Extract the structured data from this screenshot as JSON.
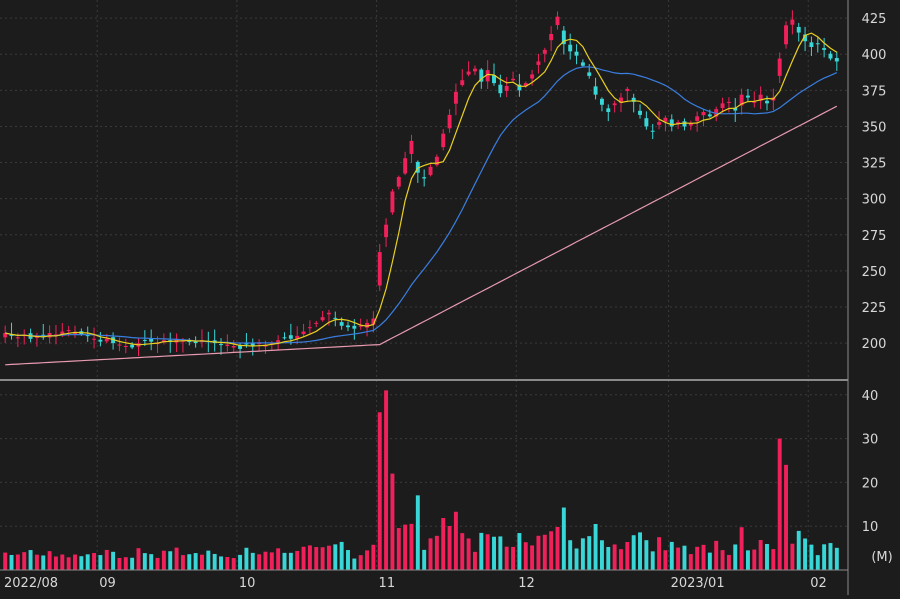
{
  "chart_data": {
    "type": "candlestick",
    "price_axis": {
      "ticks": [
        200,
        225,
        250,
        275,
        300,
        325,
        350,
        375,
        400,
        425
      ],
      "ylim": [
        180,
        432
      ]
    },
    "volume_axis": {
      "ticks": [
        10,
        20,
        30,
        40
      ],
      "unit_label": "(M)",
      "ylim": [
        0,
        42
      ]
    },
    "x_labels": [
      {
        "label": "2022/08",
        "index": 0
      },
      {
        "label": "09",
        "index": 15
      },
      {
        "label": "10",
        "index": 37
      },
      {
        "label": "11",
        "index": 59
      },
      {
        "label": "12",
        "index": 81
      },
      {
        "label": "2023/01",
        "index": 105
      },
      {
        "label": "02",
        "index": 127
      }
    ],
    "month_dividers": [
      15,
      37,
      59,
      81,
      105,
      127
    ],
    "colors": {
      "up": "#f0205a",
      "down": "#38d6d6",
      "ma_short": "#e8d020",
      "ma_mid": "#3a7ee0",
      "ma_long": "#e89ab0",
      "grid": "#3a3a3a",
      "axis_text": "#d8d8d8"
    },
    "close": [
      207,
      205,
      204,
      206,
      203,
      205,
      204,
      207,
      206,
      208,
      209,
      207,
      206,
      205,
      203,
      201,
      203,
      200,
      199,
      198,
      197,
      200,
      202,
      201,
      200,
      202,
      201,
      203,
      202,
      201,
      200,
      202,
      201,
      200,
      199,
      199,
      198,
      196,
      199,
      198,
      200,
      199,
      200,
      202,
      204,
      203,
      205,
      208,
      211,
      214,
      218,
      221,
      217,
      212,
      211,
      210,
      212,
      214,
      217,
      263,
      282,
      305,
      315,
      328,
      340,
      318,
      314,
      322,
      329,
      345,
      358,
      374,
      382,
      388,
      390,
      381,
      389,
      380,
      373,
      378,
      383,
      375,
      380,
      386,
      395,
      403,
      414,
      426,
      407,
      402,
      399,
      392,
      385,
      372,
      365,
      360,
      366,
      370,
      376,
      367,
      358,
      350,
      347,
      353,
      356,
      350,
      353,
      350,
      352,
      357,
      360,
      357,
      362,
      366,
      367,
      361,
      372,
      370,
      367,
      372,
      366,
      370,
      397,
      420,
      424,
      415,
      409,
      405,
      407,
      403,
      397,
      395
    ]
  }
}
